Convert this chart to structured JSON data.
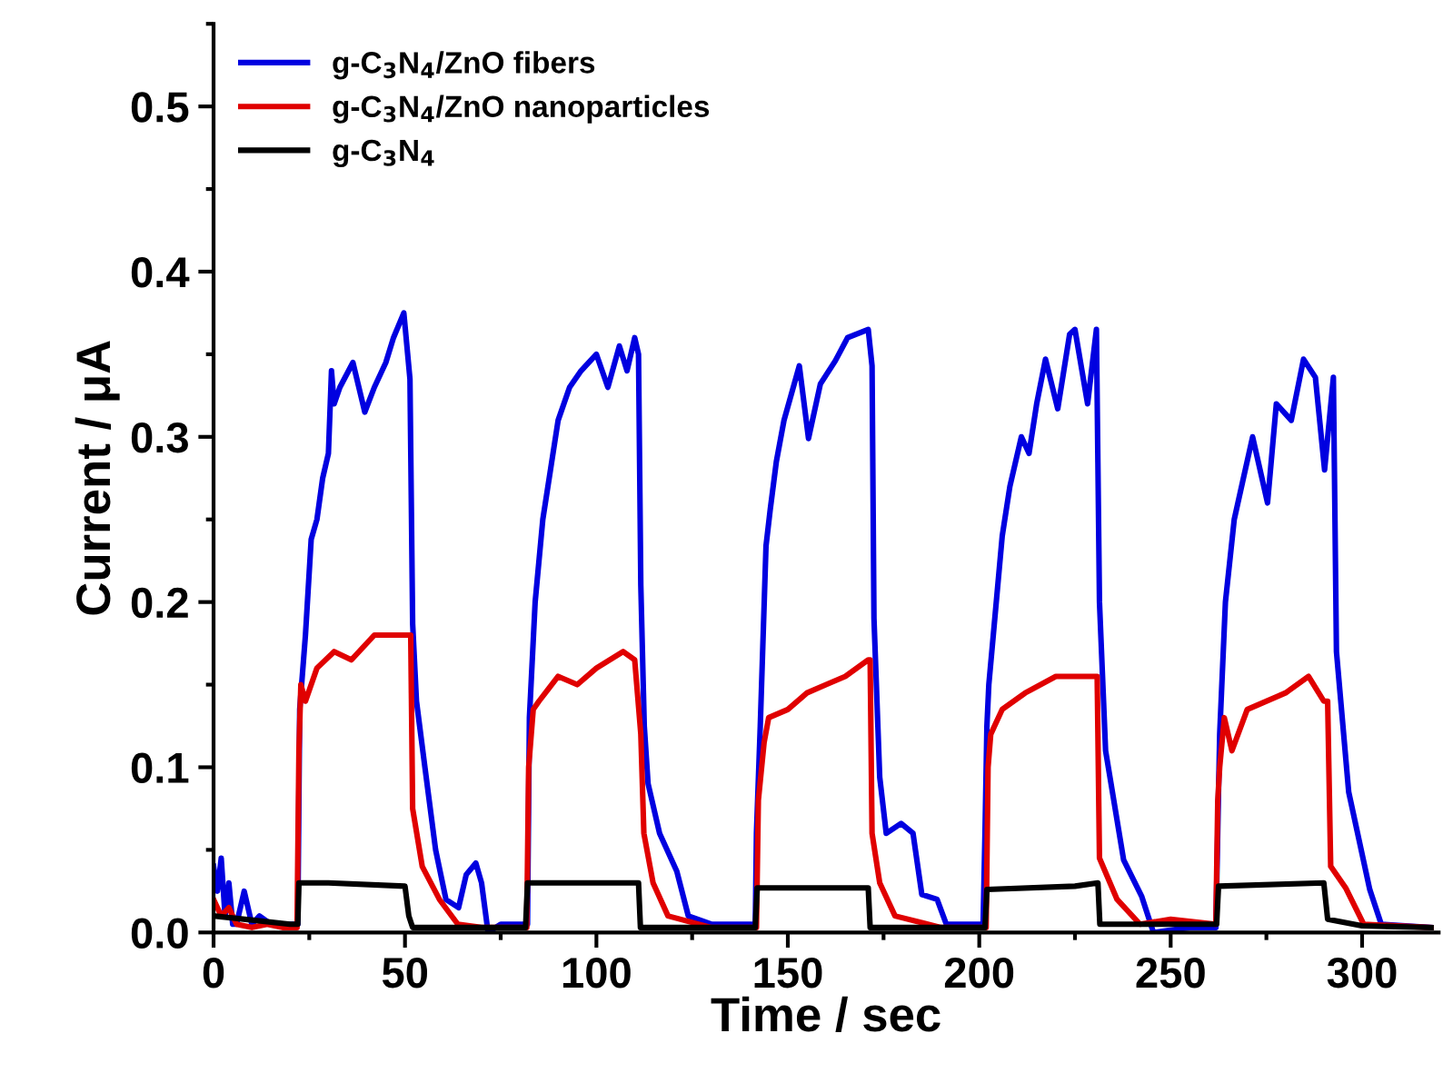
{
  "chart_data": {
    "type": "line",
    "xlabel": "Time / sec",
    "ylabel": "Current / μA",
    "xlim": [
      0,
      320
    ],
    "ylim": [
      0,
      0.55
    ],
    "xticks": [
      0,
      50,
      100,
      150,
      200,
      250,
      300
    ],
    "yticks": [
      {
        "value": 0,
        "label": "0.0"
      },
      {
        "value": 0.1,
        "label": "0.1"
      },
      {
        "value": 0.2,
        "label": "0.2"
      },
      {
        "value": 0.3,
        "label": "0.3"
      },
      {
        "value": 0.4,
        "label": "0.4"
      },
      {
        "value": 0.5,
        "label": "0.5"
      }
    ],
    "grid": false,
    "legend": "top left",
    "marker": "none",
    "line_style": "solid",
    "series": [
      {
        "name": "g-C$_{3}$N$_{4}$/ZnO fibers",
        "color": "#0000e0",
        "x": [
          0,
          1,
          2,
          3,
          4,
          5,
          6,
          8,
          10,
          12,
          15,
          18,
          21,
          22,
          22.5,
          24,
          25.5,
          27,
          28.5,
          30,
          30.8,
          31.5,
          33,
          36.4,
          39.5,
          42,
          45,
          47,
          49.7,
          51.3,
          52,
          53,
          55.2,
          58,
          60.7,
          64,
          66,
          68.5,
          70,
          71.7,
          75,
          80,
          82,
          82.5,
          84,
          86,
          88,
          90,
          93,
          96,
          100,
          103,
          106,
          108,
          110,
          111,
          111.6,
          112.5,
          113.5,
          116.5,
          121,
          124,
          130,
          141.5,
          141.8,
          142.8,
          144.3,
          145.4,
          147,
          149,
          153,
          155.4,
          158.5,
          162.4,
          165.6,
          171,
          172,
          172.5,
          174,
          175.7,
          179.6,
          182.7,
          185,
          189,
          191.4,
          195,
          201,
          201.5,
          202,
          202.5,
          206,
          208,
          211,
          213,
          215,
          217.3,
          220.5,
          223.6,
          225,
          228.3,
          230.6,
          231.4,
          233,
          237.7,
          242.4,
          245.5,
          255,
          261.8,
          262.8,
          264.3,
          266.6,
          269,
          271.4,
          275.3,
          277.6,
          281.5,
          284.7,
          287.8,
          290.2,
          292.5,
          293.3,
          296.5,
          302,
          305,
          318
        ],
        "values": [
          0.04,
          0.025,
          0.045,
          0.01,
          0.03,
          0.005,
          0.005,
          0.025,
          0.005,
          0.01,
          0.005,
          0.005,
          0.005,
          0.005,
          0.135,
          0.18,
          0.238,
          0.25,
          0.275,
          0.29,
          0.34,
          0.32,
          0.33,
          0.345,
          0.315,
          0.33,
          0.345,
          0.36,
          0.375,
          0.335,
          0.187,
          0.14,
          0.1,
          0.05,
          0.02,
          0.015,
          0.035,
          0.042,
          0.03,
          0.0,
          0.005,
          0.005,
          0.005,
          0.13,
          0.2,
          0.25,
          0.28,
          0.31,
          0.33,
          0.34,
          0.35,
          0.33,
          0.355,
          0.34,
          0.36,
          0.35,
          0.21,
          0.125,
          0.09,
          0.06,
          0.037,
          0.01,
          0.005,
          0.005,
          0.06,
          0.125,
          0.234,
          0.256,
          0.285,
          0.31,
          0.343,
          0.299,
          0.332,
          0.346,
          0.36,
          0.365,
          0.343,
          0.19,
          0.094,
          0.06,
          0.066,
          0.06,
          0.023,
          0.02,
          0.005,
          0.005,
          0.005,
          0.06,
          0.125,
          0.15,
          0.24,
          0.27,
          0.3,
          0.29,
          0.32,
          0.347,
          0.317,
          0.362,
          0.365,
          0.32,
          0.365,
          0.2,
          0.11,
          0.044,
          0.022,
          0.0,
          0.003,
          0.003,
          0.12,
          0.2,
          0.25,
          0.275,
          0.3,
          0.26,
          0.32,
          0.31,
          0.347,
          0.336,
          0.28,
          0.336,
          0.17,
          0.085,
          0.026,
          0.005,
          0.003
        ]
      },
      {
        "name": "g-C$_{3}$N$_{4}$/ZnO nanoparticles",
        "color": "#e00000",
        "x": [
          0,
          2,
          4,
          6,
          10,
          14,
          18,
          21.8,
          22.3,
          22.8,
          24,
          27,
          31.5,
          36,
          42,
          49.7,
          51.5,
          52,
          54.5,
          59,
          63.8,
          70,
          81.8,
          82.3,
          83.5,
          85,
          90,
          95,
          100,
          107,
          110,
          111.6,
          112.4,
          114.8,
          118.7,
          130,
          141.8,
          142.3,
          143.8,
          145,
          150,
          155,
          160,
          165,
          171,
          171.5,
          172,
          174,
          178,
          190,
          201.8,
          202.3,
          203,
          206,
          212,
          220,
          230,
          230.8,
          231.4,
          236,
          242,
          250,
          261.8,
          262.3,
          262.8,
          264,
          266,
          270,
          280,
          286,
          290,
          291,
          291.8,
          295.7,
          300.4,
          318
        ],
        "values": [
          0.02,
          0.01,
          0.015,
          0.005,
          0.003,
          0.005,
          0.003,
          0.003,
          0.11,
          0.15,
          0.14,
          0.16,
          0.17,
          0.165,
          0.18,
          0.18,
          0.18,
          0.075,
          0.04,
          0.02,
          0.005,
          0.003,
          0.003,
          0.1,
          0.135,
          0.14,
          0.155,
          0.15,
          0.16,
          0.17,
          0.165,
          0.12,
          0.06,
          0.03,
          0.01,
          0.003,
          0.003,
          0.08,
          0.115,
          0.13,
          0.135,
          0.145,
          0.15,
          0.155,
          0.165,
          0.165,
          0.06,
          0.03,
          0.01,
          0.003,
          0.003,
          0.1,
          0.12,
          0.135,
          0.145,
          0.155,
          0.155,
          0.155,
          0.045,
          0.02,
          0.005,
          0.008,
          0.005,
          0.08,
          0.1,
          0.13,
          0.11,
          0.135,
          0.145,
          0.155,
          0.14,
          0.14,
          0.04,
          0.027,
          0.005,
          0.003
        ]
      },
      {
        "name": "g-C$_{3}$N$_{4}$",
        "color": "#000000",
        "x": [
          0,
          20,
          22,
          22.3,
          30,
          50,
          51,
          52,
          81.5,
          82,
          111,
          111.5,
          141.5,
          142,
          171,
          171.5,
          201.5,
          202,
          225,
          231,
          231.5,
          262,
          262.5,
          290,
          291,
          300,
          318
        ],
        "values": [
          0.01,
          0.005,
          0.005,
          0.03,
          0.03,
          0.028,
          0.01,
          0.003,
          0.003,
          0.03,
          0.03,
          0.003,
          0.003,
          0.027,
          0.027,
          0.003,
          0.003,
          0.026,
          0.028,
          0.03,
          0.005,
          0.005,
          0.028,
          0.03,
          0.008,
          0.004,
          0.003
        ]
      }
    ]
  }
}
